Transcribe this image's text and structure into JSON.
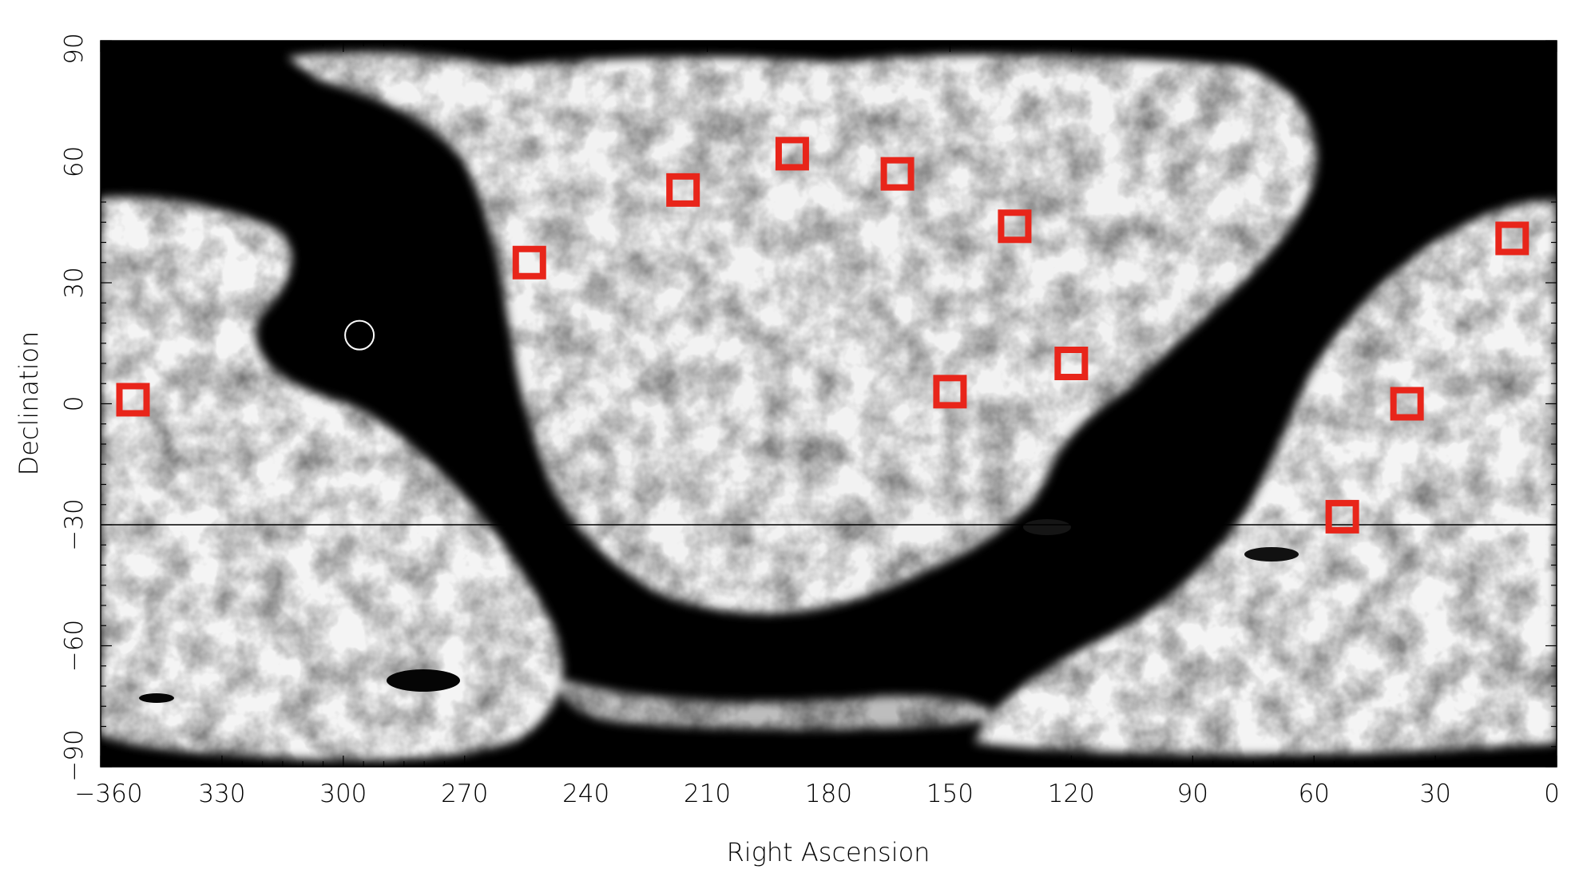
{
  "chart_data": {
    "type": "scatter",
    "background": "grayscale all-sky map in equatorial coordinates (white = high emission, black = low emission)",
    "xlabel": "Right Ascension",
    "ylabel": "Declination",
    "xlim": [
      360,
      0
    ],
    "ylim": [
      -90,
      90
    ],
    "x_ticks": [
      360,
      330,
      300,
      270,
      240,
      210,
      180,
      150,
      120,
      90,
      60,
      30,
      0
    ],
    "y_ticks": [
      -90,
      -60,
      -30,
      0,
      30,
      60,
      90
    ],
    "x_tick_labels": [
      "−360",
      "330",
      "300",
      "270",
      "240",
      "210",
      "180",
      "150",
      "120",
      "90",
      "60",
      "30",
      "0"
    ],
    "y_tick_labels": [
      "−90",
      "−60",
      "−30",
      "0",
      "30",
      "60",
      "90"
    ],
    "grid": false,
    "horizontal_line_dec": -30,
    "series": [
      {
        "marker": "square",
        "color": "#e8251a",
        "points": [
          {
            "ra": 352,
            "dec": 1
          },
          {
            "ra": 254,
            "dec": 35
          },
          {
            "ra": 216,
            "dec": 53
          },
          {
            "ra": 189,
            "dec": 62
          },
          {
            "ra": 163,
            "dec": 57
          },
          {
            "ra": 134,
            "dec": 44
          },
          {
            "ra": 150,
            "dec": 3
          },
          {
            "ra": 120,
            "dec": 10
          },
          {
            "ra": 53,
            "dec": -28
          },
          {
            "ra": 37,
            "dec": 0
          },
          {
            "ra": 11,
            "dec": 41
          }
        ]
      },
      {
        "marker": "circle",
        "color": "#ffffff",
        "points": [
          {
            "ra": 296,
            "dec": 17
          }
        ]
      }
    ]
  }
}
